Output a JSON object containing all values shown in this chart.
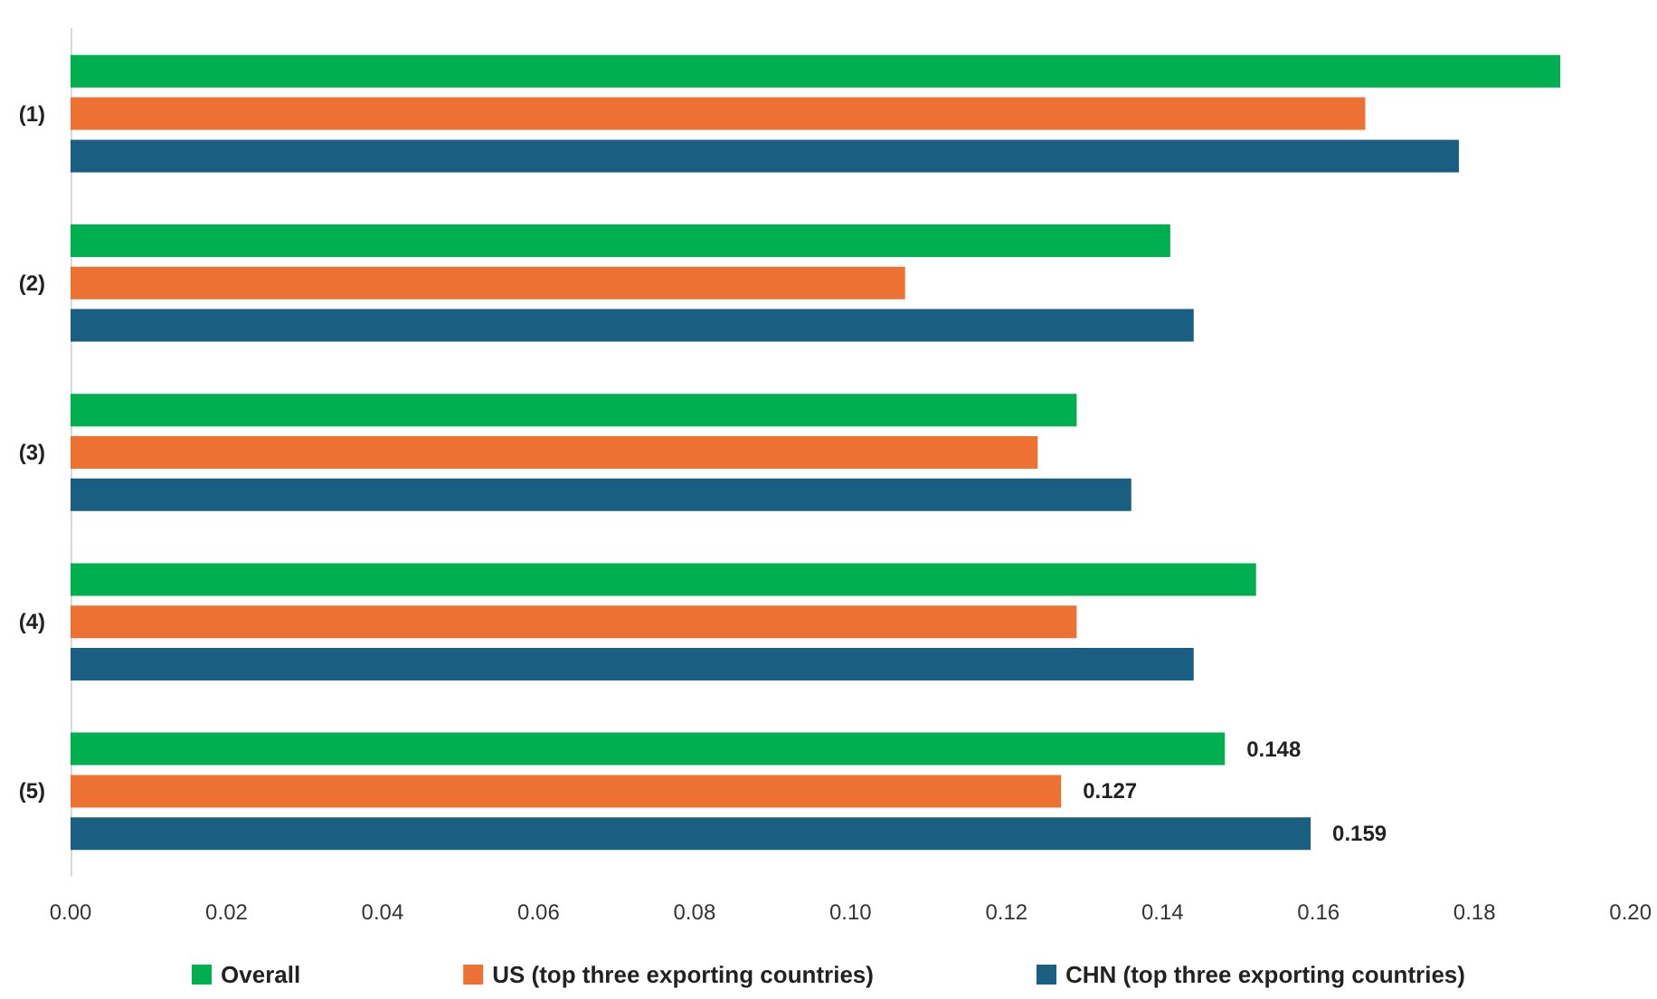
{
  "chart_data": {
    "type": "bar",
    "orientation": "horizontal",
    "categories": [
      "(1)",
      "(2)",
      "(3)",
      "(4)",
      "(5)"
    ],
    "series": [
      {
        "name": "Overall",
        "color": "#00b050",
        "values": [
          0.191,
          0.141,
          0.129,
          0.152,
          0.148
        ],
        "value_labels": [
          null,
          null,
          null,
          null,
          "0.148"
        ]
      },
      {
        "name": "US (top three exporting countries)",
        "color": "#ed7133",
        "values": [
          0.166,
          0.107,
          0.124,
          0.129,
          0.127
        ],
        "value_labels": [
          null,
          null,
          null,
          null,
          "0.127"
        ]
      },
      {
        "name": "CHN (top three exporting countries)",
        "color": "#1a5e82",
        "values": [
          0.178,
          0.144,
          0.136,
          0.144,
          0.159
        ],
        "value_labels": [
          null,
          null,
          null,
          null,
          "0.159"
        ]
      }
    ],
    "xlim": [
      0,
      0.2
    ],
    "xticks": [
      {
        "value": 0,
        "label": "0.00"
      },
      {
        "value": 0.02,
        "label": "0.02"
      },
      {
        "value": 0.04,
        "label": "0.04"
      },
      {
        "value": 0.06,
        "label": "0.06"
      },
      {
        "value": 0.08,
        "label": "0.08"
      },
      {
        "value": 0.1,
        "label": "0.10"
      },
      {
        "value": 0.12,
        "label": "0.12"
      },
      {
        "value": 0.14,
        "label": "0.14"
      },
      {
        "value": 0.16,
        "label": "0.16"
      },
      {
        "value": 0.18,
        "label": "0.18"
      },
      {
        "value": 0.2,
        "label": "0.20"
      }
    ],
    "grid": false,
    "legend": "bottom"
  }
}
